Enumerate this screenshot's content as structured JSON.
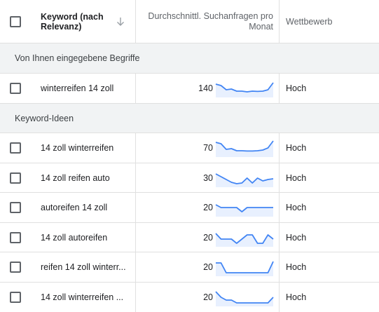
{
  "header": {
    "keyword_label": "Keyword (nach Relevanz)",
    "volume_label": "Durchschnittl. Suchanfragen pro Monat",
    "competition_label": "Wettbewerb",
    "sort_icon": "arrow-down-icon"
  },
  "sections": [
    {
      "label": "Von Ihnen eingegebene Begriffe"
    },
    {
      "label": "Keyword-Ideen"
    }
  ],
  "rows": [
    {
      "keyword": "winterreifen 14 zoll",
      "volume": "140",
      "competition": "Hoch",
      "trend": [
        9,
        8,
        5,
        5.5,
        4,
        4,
        3.5,
        4,
        3.8,
        4,
        5,
        10
      ]
    },
    {
      "keyword": "14 zoll winterreifen",
      "volume": "70",
      "competition": "Hoch",
      "trend": [
        10,
        9,
        5,
        5.5,
        4,
        4,
        3.8,
        3.8,
        4,
        4.5,
        6,
        11
      ]
    },
    {
      "keyword": "14 zoll reifen auto",
      "volume": "30",
      "competition": "Hoch",
      "trend": [
        9,
        7,
        5,
        3,
        2,
        2.5,
        6,
        2.5,
        6,
        4,
        5,
        5.5
      ]
    },
    {
      "keyword": "autoreifen 14 zoll",
      "volume": "20",
      "competition": "Hoch",
      "trend": [
        8,
        6,
        6,
        6,
        6,
        3,
        6,
        6,
        6,
        6,
        6,
        6
      ]
    },
    {
      "keyword": "14 zoll autoreifen",
      "volume": "20",
      "competition": "Hoch",
      "trend": [
        9,
        5,
        5,
        5,
        2,
        5,
        8,
        8,
        2,
        2,
        8,
        5
      ]
    },
    {
      "keyword": "reifen 14 zoll winterr...",
      "volume": "20",
      "competition": "Hoch",
      "trend": [
        9,
        9,
        2,
        2,
        2,
        2,
        2,
        2,
        2,
        2,
        2,
        10
      ]
    },
    {
      "keyword": "14 zoll winterreifen ...",
      "volume": "20",
      "competition": "Hoch",
      "trend": [
        10,
        6,
        4,
        4,
        2,
        2,
        2,
        2,
        2,
        2,
        2,
        6
      ]
    }
  ],
  "colors": {
    "trend_line": "#4285f4",
    "trend_fill": "#e8f0fe",
    "section_bg": "#f1f3f4",
    "border": "#e0e0e0"
  }
}
